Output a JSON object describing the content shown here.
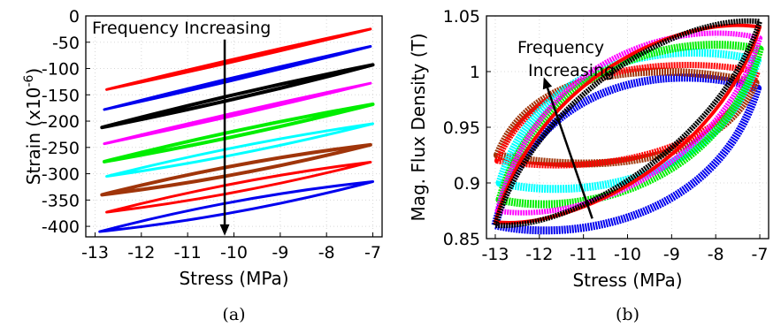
{
  "chart_data": [
    {
      "id": "a",
      "type": "line",
      "caption": "(a)",
      "xlabel": "Stress (MPa)",
      "ylabel_main": "Strain (x10",
      "ylabel_sup": "-6",
      "ylabel_close": ")",
      "xlim": [
        -13.2,
        -6.8
      ],
      "ylim": [
        -420,
        0
      ],
      "xticks": [
        -13,
        -12,
        -11,
        -10,
        -9,
        -8,
        -7
      ],
      "yticks": [
        0,
        -50,
        -100,
        -150,
        -200,
        -250,
        -300,
        -350,
        -400
      ],
      "grid": true,
      "annotation": {
        "text": "Frequency Increasing",
        "arrow_x": -10.2,
        "arrow_from_y": -45,
        "arrow_to_y": -418
      },
      "series": [
        {
          "color": "#ff0000",
          "x_start": -12.75,
          "x_end": -7.05,
          "y_start": -140,
          "y_end": -25,
          "loop_width": 3,
          "line_width": 3
        },
        {
          "color": "#0000ee",
          "x_start": -12.8,
          "x_end": -7.05,
          "y_start": -178,
          "y_end": -58,
          "loop_width": 3,
          "line_width": 3
        },
        {
          "color": "#000000",
          "x_start": -12.85,
          "x_end": -7.0,
          "y_start": -212,
          "y_end": -93,
          "loop_width": 5,
          "line_width": 4
        },
        {
          "color": "#ff00ff",
          "x_start": -12.8,
          "x_end": -7.05,
          "y_start": -243,
          "y_end": -128,
          "loop_width": 3,
          "line_width": 3
        },
        {
          "color": "#00ee00",
          "x_start": -12.8,
          "x_end": -7.0,
          "y_start": -277,
          "y_end": -168,
          "loop_width": 6,
          "line_width": 4
        },
        {
          "color": "#00ffff",
          "x_start": -12.75,
          "x_end": -7.0,
          "y_start": -305,
          "y_end": -205,
          "loop_width": 8,
          "line_width": 3
        },
        {
          "color": "#a0350a",
          "x_start": -12.85,
          "x_end": -7.05,
          "y_start": -340,
          "y_end": -245,
          "loop_width": 10,
          "line_width": 4
        },
        {
          "color": "#ff0000",
          "x_start": -12.75,
          "x_end": -7.05,
          "y_start": -373,
          "y_end": -278,
          "loop_width": 10,
          "line_width": 3
        },
        {
          "color": "#0000ee",
          "x_start": -12.9,
          "x_end": -7.0,
          "y_start": -410,
          "y_end": -315,
          "loop_width": 12,
          "line_width": 3
        }
      ]
    },
    {
      "id": "b",
      "type": "line",
      "caption": "(b)",
      "xlabel": "Stress (MPa)",
      "ylabel": "Mag. Flux Density (T)",
      "xlim": [
        -13.2,
        -6.8
      ],
      "ylim": [
        0.85,
        1.05
      ],
      "xticks": [
        -13,
        -12,
        -11,
        -10,
        -9,
        -8,
        -7
      ],
      "yticks": [
        1.05,
        1,
        0.95,
        0.9,
        0.85
      ],
      "ytick_labels": [
        "1.05",
        "1",
        "0.95",
        "0.9",
        "0.85"
      ],
      "grid": true,
      "annotation": {
        "text_line1": "Frequency",
        "text_line2": "Increasing",
        "arrow_from": [
          -10.8,
          0.868
        ],
        "arrow_to": [
          -11.9,
          0.995
        ]
      },
      "series": [
        {
          "color": "#0000ee",
          "x_start": -13.0,
          "x_end": -7.05,
          "y_start": 0.862,
          "y_end": 0.985,
          "upper_bulge": 0.055,
          "lower_bulge": 0.04,
          "line_width": 9
        },
        {
          "color": "#a0350a",
          "x_start": -12.95,
          "x_end": -7.1,
          "y_start": 0.925,
          "y_end": 0.99,
          "upper_bulge": 0.04,
          "lower_bulge": 0.035,
          "line_width": 9
        },
        {
          "color": "#ff0000",
          "x_start": -12.95,
          "x_end": -7.05,
          "y_start": 0.92,
          "y_end": 1.0,
          "upper_bulge": 0.035,
          "lower_bulge": 0.03,
          "line_width": 7
        },
        {
          "color": "#00ffff",
          "x_start": -12.9,
          "x_end": -7.05,
          "y_start": 0.9,
          "y_end": 1.01,
          "upper_bulge": 0.045,
          "lower_bulge": 0.04,
          "line_width": 9
        },
        {
          "color": "#00ee00",
          "x_start": -12.9,
          "x_end": -7.0,
          "y_start": 0.885,
          "y_end": 1.02,
          "upper_bulge": 0.04,
          "lower_bulge": 0.04,
          "line_width": 9
        },
        {
          "color": "#ff00ff",
          "x_start": -12.95,
          "x_end": -7.0,
          "y_start": 0.875,
          "y_end": 1.03,
          "upper_bulge": 0.045,
          "lower_bulge": 0.03,
          "line_width": 6
        },
        {
          "color": "#ff0000",
          "x_start": -13.0,
          "x_end": -7.0,
          "y_start": 0.865,
          "y_end": 1.04,
          "upper_bulge": 0.03,
          "lower_bulge": 0.02,
          "line_width": 4
        },
        {
          "color": "#000000",
          "x_start": -13.0,
          "x_end": -7.0,
          "y_start": 0.862,
          "y_end": 1.045,
          "upper_bulge": 0.018,
          "lower_bulge": 0.012,
          "line_width": 6
        }
      ]
    }
  ]
}
